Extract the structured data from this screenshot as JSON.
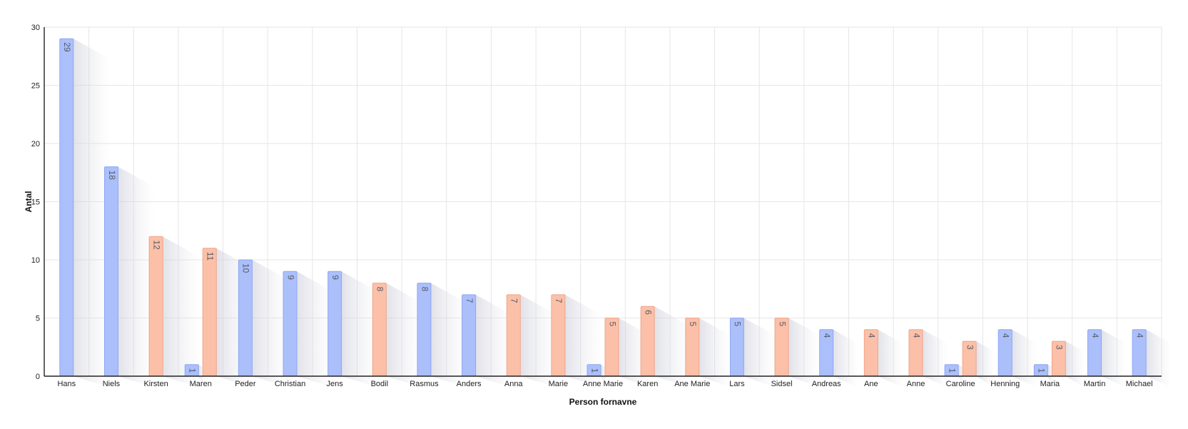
{
  "colors": {
    "male": "#abbffb",
    "male_stroke": "#8ea6f4",
    "female": "#fcc0a8",
    "female_stroke": "#f0a488",
    "grid": "#e6e6ea"
  },
  "chart_data": {
    "type": "bar",
    "title": "",
    "xlabel": "Person fornavne",
    "ylabel": "Antal",
    "ylim": [
      0,
      30
    ],
    "yticks": [
      0,
      5,
      10,
      15,
      20,
      25,
      30
    ],
    "grid": true,
    "categories": [
      "Hans",
      "Niels",
      "Kirsten",
      "Maren",
      "Peder",
      "Christian",
      "Jens",
      "Bodil",
      "Rasmus",
      "Anders",
      "Anna",
      "Marie",
      "Anne Marie",
      "Karen",
      "Ane Marie",
      "Lars",
      "Sidsel",
      "Andreas",
      "Ane",
      "Anne",
      "Caroline",
      "Henning",
      "Maria",
      "Martin",
      "Michael"
    ],
    "series": [
      {
        "color": "male",
        "values": [
          29,
          18,
          0,
          1,
          10,
          9,
          9,
          0,
          8,
          7,
          0,
          0,
          1,
          0,
          0,
          5,
          0,
          4,
          0,
          0,
          1,
          4,
          1,
          4,
          4
        ]
      },
      {
        "color": "female",
        "values": [
          0,
          0,
          12,
          11,
          0,
          0,
          0,
          8,
          0,
          0,
          7,
          7,
          5,
          6,
          5,
          0,
          5,
          0,
          4,
          4,
          3,
          0,
          3,
          0,
          0
        ]
      }
    ]
  }
}
